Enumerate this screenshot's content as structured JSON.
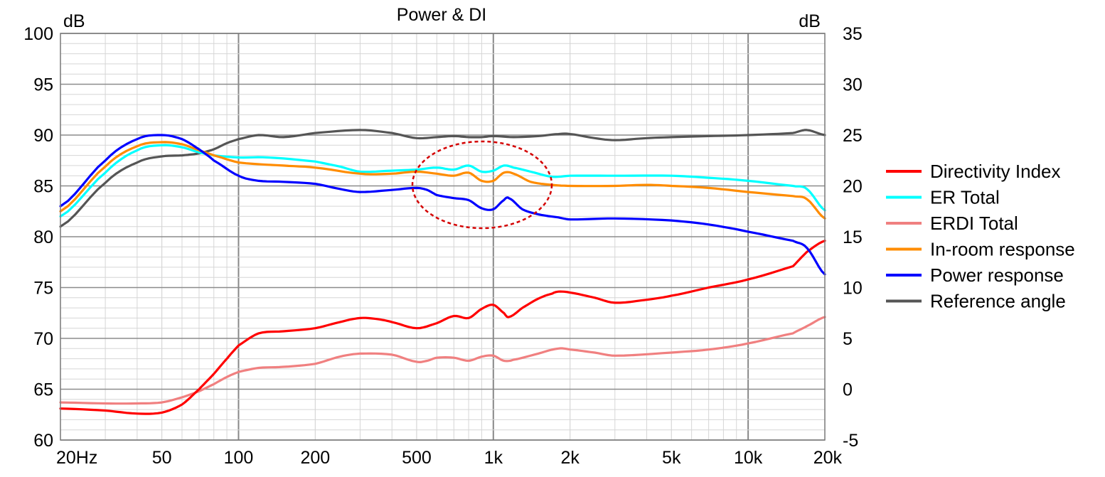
{
  "chart_data": {
    "type": "line",
    "title": "Power & DI",
    "x_scale": "log",
    "xlim": [
      20,
      20000
    ],
    "ylim_left": [
      60,
      100
    ],
    "ylim_right": [
      -5,
      35
    ],
    "ylabel_left": "dB",
    "ylabel_right": "dB",
    "x_ticks": [
      {
        "value": 20,
        "label": "20Hz"
      },
      {
        "value": 50,
        "label": "50"
      },
      {
        "value": 100,
        "label": "100"
      },
      {
        "value": 200,
        "label": "200"
      },
      {
        "value": 500,
        "label": "500"
      },
      {
        "value": 1000,
        "label": "1k"
      },
      {
        "value": 2000,
        "label": "2k"
      },
      {
        "value": 5000,
        "label": "5k"
      },
      {
        "value": 10000,
        "label": "10k"
      },
      {
        "value": 20000,
        "label": "20k"
      }
    ],
    "y_ticks_left": [
      "60",
      "65",
      "70",
      "75",
      "80",
      "85",
      "90",
      "95",
      "100"
    ],
    "y_ticks_right": [
      "-5",
      "0",
      "5",
      "10",
      "15",
      "20",
      "25",
      "30",
      "35"
    ],
    "grid": true,
    "legend_position": "right",
    "series": [
      {
        "name": "Directivity Index",
        "color": "#ff0000",
        "axis": "right",
        "points": [
          [
            20,
            -1.9
          ],
          [
            30,
            -2.1
          ],
          [
            40,
            -2.4
          ],
          [
            50,
            -2.3
          ],
          [
            60,
            -1.5
          ],
          [
            70,
            0.0
          ],
          [
            80,
            1.5
          ],
          [
            90,
            3.0
          ],
          [
            100,
            4.3
          ],
          [
            120,
            5.5
          ],
          [
            150,
            5.7
          ],
          [
            200,
            6.0
          ],
          [
            250,
            6.6
          ],
          [
            300,
            7.0
          ],
          [
            350,
            6.9
          ],
          [
            400,
            6.6
          ],
          [
            500,
            6.0
          ],
          [
            600,
            6.5
          ],
          [
            700,
            7.2
          ],
          [
            800,
            7.0
          ],
          [
            900,
            7.9
          ],
          [
            1000,
            8.3
          ],
          [
            1100,
            7.5
          ],
          [
            1150,
            7.1
          ],
          [
            1300,
            8.0
          ],
          [
            1500,
            8.9
          ],
          [
            1700,
            9.4
          ],
          [
            1800,
            9.6
          ],
          [
            2000,
            9.5
          ],
          [
            2500,
            9.0
          ],
          [
            3000,
            8.5
          ],
          [
            4000,
            8.8
          ],
          [
            5000,
            9.2
          ],
          [
            7000,
            10.0
          ],
          [
            10000,
            10.8
          ],
          [
            15000,
            12.1
          ],
          [
            17000,
            13.5
          ],
          [
            20000,
            14.6
          ]
        ]
      },
      {
        "name": "ER Total",
        "color": "#00ffff",
        "axis": "left",
        "points": [
          [
            20,
            82.0
          ],
          [
            30,
            86.3
          ],
          [
            40,
            88.5
          ],
          [
            50,
            89.0
          ],
          [
            60,
            88.8
          ],
          [
            70,
            88.3
          ],
          [
            80,
            88.0
          ],
          [
            100,
            87.8
          ],
          [
            130,
            87.8
          ],
          [
            200,
            87.4
          ],
          [
            250,
            86.9
          ],
          [
            300,
            86.4
          ],
          [
            400,
            86.5
          ],
          [
            500,
            86.6
          ],
          [
            600,
            86.8
          ],
          [
            700,
            86.6
          ],
          [
            800,
            87.0
          ],
          [
            900,
            86.4
          ],
          [
            1000,
            86.5
          ],
          [
            1100,
            87.0
          ],
          [
            1200,
            86.8
          ],
          [
            1400,
            86.4
          ],
          [
            1700,
            85.9
          ],
          [
            2000,
            86.0
          ],
          [
            3000,
            86.0
          ],
          [
            5000,
            86.0
          ],
          [
            7000,
            85.8
          ],
          [
            10000,
            85.5
          ],
          [
            15000,
            85.0
          ],
          [
            17000,
            84.7
          ],
          [
            20000,
            82.6
          ]
        ]
      },
      {
        "name": "ERDI Total",
        "color": "#f08080",
        "axis": "right",
        "points": [
          [
            20,
            -1.3
          ],
          [
            30,
            -1.4
          ],
          [
            40,
            -1.4
          ],
          [
            50,
            -1.3
          ],
          [
            60,
            -0.8
          ],
          [
            70,
            -0.2
          ],
          [
            80,
            0.5
          ],
          [
            90,
            1.2
          ],
          [
            100,
            1.7
          ],
          [
            120,
            2.1
          ],
          [
            150,
            2.2
          ],
          [
            200,
            2.5
          ],
          [
            250,
            3.2
          ],
          [
            300,
            3.5
          ],
          [
            400,
            3.4
          ],
          [
            500,
            2.7
          ],
          [
            550,
            2.8
          ],
          [
            600,
            3.1
          ],
          [
            700,
            3.1
          ],
          [
            800,
            2.8
          ],
          [
            900,
            3.2
          ],
          [
            1000,
            3.3
          ],
          [
            1100,
            2.8
          ],
          [
            1200,
            2.9
          ],
          [
            1500,
            3.5
          ],
          [
            1800,
            4.0
          ],
          [
            2000,
            3.9
          ],
          [
            2500,
            3.6
          ],
          [
            3000,
            3.3
          ],
          [
            5000,
            3.6
          ],
          [
            7000,
            3.9
          ],
          [
            10000,
            4.5
          ],
          [
            15000,
            5.5
          ],
          [
            17000,
            6.2
          ],
          [
            20000,
            7.1
          ]
        ]
      },
      {
        "name": "In-room response",
        "color": "#ff8c00",
        "axis": "left",
        "points": [
          [
            20,
            82.5
          ],
          [
            30,
            86.9
          ],
          [
            40,
            88.9
          ],
          [
            50,
            89.3
          ],
          [
            60,
            89.1
          ],
          [
            70,
            88.5
          ],
          [
            80,
            88.0
          ],
          [
            100,
            87.3
          ],
          [
            150,
            87.0
          ],
          [
            200,
            86.8
          ],
          [
            300,
            86.2
          ],
          [
            400,
            86.2
          ],
          [
            500,
            86.4
          ],
          [
            600,
            86.2
          ],
          [
            700,
            86.0
          ],
          [
            800,
            86.3
          ],
          [
            900,
            85.5
          ],
          [
            1000,
            85.5
          ],
          [
            1100,
            86.3
          ],
          [
            1200,
            86.2
          ],
          [
            1400,
            85.4
          ],
          [
            1700,
            85.1
          ],
          [
            2000,
            85.0
          ],
          [
            3000,
            85.0
          ],
          [
            4000,
            85.1
          ],
          [
            5000,
            85.0
          ],
          [
            7000,
            84.8
          ],
          [
            10000,
            84.4
          ],
          [
            15000,
            84.0
          ],
          [
            17000,
            83.7
          ],
          [
            20000,
            81.8
          ]
        ]
      },
      {
        "name": "Power response",
        "color": "#0000ff",
        "axis": "left",
        "points": [
          [
            20,
            83.0
          ],
          [
            30,
            87.5
          ],
          [
            40,
            89.6
          ],
          [
            50,
            90.0
          ],
          [
            60,
            89.6
          ],
          [
            70,
            88.6
          ],
          [
            80,
            87.5
          ],
          [
            100,
            86.0
          ],
          [
            120,
            85.5
          ],
          [
            150,
            85.4
          ],
          [
            200,
            85.2
          ],
          [
            250,
            84.7
          ],
          [
            300,
            84.4
          ],
          [
            400,
            84.6
          ],
          [
            500,
            84.8
          ],
          [
            550,
            84.6
          ],
          [
            600,
            84.1
          ],
          [
            700,
            83.8
          ],
          [
            800,
            83.6
          ],
          [
            900,
            82.8
          ],
          [
            1000,
            82.7
          ],
          [
            1100,
            83.6
          ],
          [
            1150,
            83.8
          ],
          [
            1300,
            82.7
          ],
          [
            1500,
            82.2
          ],
          [
            1800,
            81.9
          ],
          [
            2000,
            81.7
          ],
          [
            3000,
            81.8
          ],
          [
            5000,
            81.6
          ],
          [
            7000,
            81.2
          ],
          [
            10000,
            80.5
          ],
          [
            15000,
            79.6
          ],
          [
            17000,
            78.9
          ],
          [
            20000,
            76.3
          ]
        ]
      },
      {
        "name": "Reference angle",
        "color": "#555555",
        "axis": "left",
        "points": [
          [
            20,
            81.0
          ],
          [
            30,
            85.3
          ],
          [
            40,
            87.3
          ],
          [
            50,
            87.9
          ],
          [
            60,
            88.0
          ],
          [
            70,
            88.2
          ],
          [
            80,
            88.6
          ],
          [
            90,
            89.2
          ],
          [
            100,
            89.6
          ],
          [
            120,
            90.0
          ],
          [
            150,
            89.8
          ],
          [
            200,
            90.2
          ],
          [
            300,
            90.5
          ],
          [
            400,
            90.2
          ],
          [
            500,
            89.7
          ],
          [
            600,
            89.8
          ],
          [
            700,
            89.9
          ],
          [
            800,
            89.8
          ],
          [
            900,
            89.8
          ],
          [
            1000,
            89.9
          ],
          [
            1200,
            89.8
          ],
          [
            1500,
            89.9
          ],
          [
            1800,
            90.1
          ],
          [
            2000,
            90.1
          ],
          [
            2500,
            89.7
          ],
          [
            3000,
            89.5
          ],
          [
            4000,
            89.7
          ],
          [
            5000,
            89.8
          ],
          [
            7000,
            89.9
          ],
          [
            10000,
            90.0
          ],
          [
            15000,
            90.2
          ],
          [
            17000,
            90.5
          ],
          [
            20000,
            90.0
          ]
        ]
      }
    ]
  }
}
